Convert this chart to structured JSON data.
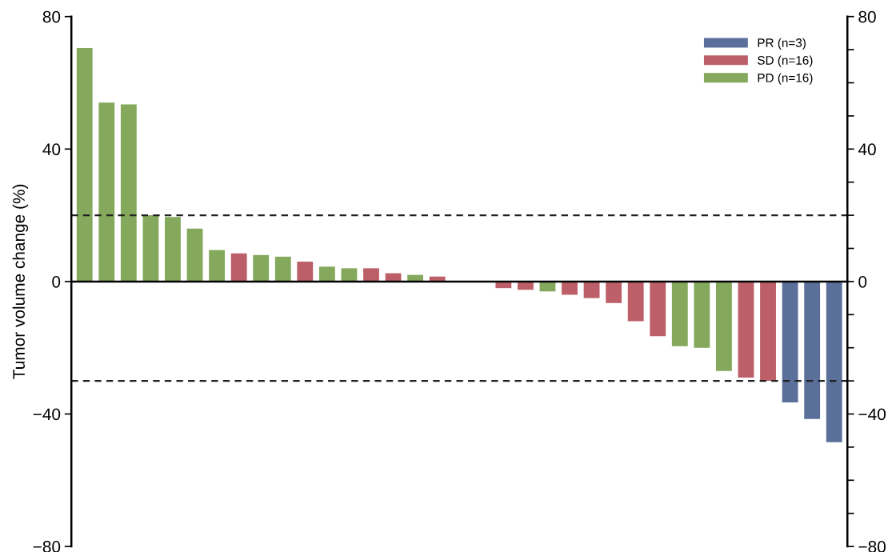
{
  "chart_data": {
    "type": "bar",
    "ylabel": "Tumor volume change (%)",
    "categories": [
      null,
      null,
      null,
      null,
      null,
      null,
      null,
      null,
      null,
      null,
      null,
      null,
      null,
      null,
      null,
      null,
      null,
      null,
      null,
      null,
      null,
      null,
      null,
      null,
      null,
      null,
      null,
      null,
      null,
      null,
      null,
      null,
      null,
      null,
      null
    ],
    "series": [
      {
        "name": "PR (n=3)",
        "color": "#5a6f9a",
        "values": [
          null,
          null,
          null,
          null,
          null,
          null,
          null,
          null,
          null,
          null,
          null,
          null,
          null,
          null,
          null,
          null,
          null,
          null,
          null,
          null,
          null,
          null,
          null,
          null,
          null,
          null,
          null,
          null,
          null,
          null,
          null,
          null,
          -36.5,
          -41.5,
          -48.5
        ]
      },
      {
        "name": "SD (n=16)",
        "color": "#bd5f68",
        "values": [
          null,
          null,
          null,
          null,
          null,
          null,
          null,
          8.5,
          null,
          null,
          6,
          null,
          null,
          4,
          2.5,
          null,
          1.5,
          0,
          0,
          -2,
          -2.5,
          null,
          -4,
          -5,
          -6.5,
          -12,
          -16.5,
          null,
          null,
          null,
          -29,
          -30,
          null,
          null,
          null
        ]
      },
      {
        "name": "PD (n=16)",
        "color": "#84a95c",
        "values": [
          70.5,
          54,
          53.5,
          20,
          19.5,
          16,
          9.5,
          null,
          8,
          7.5,
          null,
          4.5,
          4,
          null,
          null,
          2,
          null,
          null,
          null,
          null,
          null,
          -3,
          null,
          null,
          null,
          null,
          null,
          -19.5,
          -20,
          -27,
          null,
          null,
          null,
          null,
          null
        ]
      }
    ],
    "ylim": [
      -80,
      80
    ],
    "yticks": [
      80,
      40,
      0,
      {
        "value": -40,
        "label": "−40"
      },
      {
        "value": -80,
        "label": "−80"
      }
    ],
    "y2lim": [
      -80,
      80
    ],
    "y2ticks": [
      80,
      {
        "value": 70,
        "label": null
      },
      {
        "value": 60,
        "label": null
      },
      {
        "value": 50,
        "label": null
      },
      40,
      {
        "value": 30,
        "label": null
      },
      {
        "value": 20,
        "label": null
      },
      {
        "value": 10,
        "label": null
      },
      0,
      {
        "value": -10,
        "label": null
      },
      {
        "value": -20,
        "label": null
      },
      {
        "value": -30,
        "label": null
      },
      {
        "value": -40,
        "label": "−40"
      },
      {
        "value": -50,
        "label": null
      },
      {
        "value": -60,
        "label": null
      },
      {
        "value": -70,
        "label": null
      },
      {
        "value": -80,
        "label": "−80"
      }
    ],
    "ref_lines": [
      {
        "axis": "y",
        "value": 20,
        "line_style": "dashed",
        "color": "#222222"
      },
      {
        "axis": "y",
        "value": -30,
        "line_style": "dashed",
        "color": "#222222"
      }
    ],
    "legend": "top right",
    "grid": false
  }
}
